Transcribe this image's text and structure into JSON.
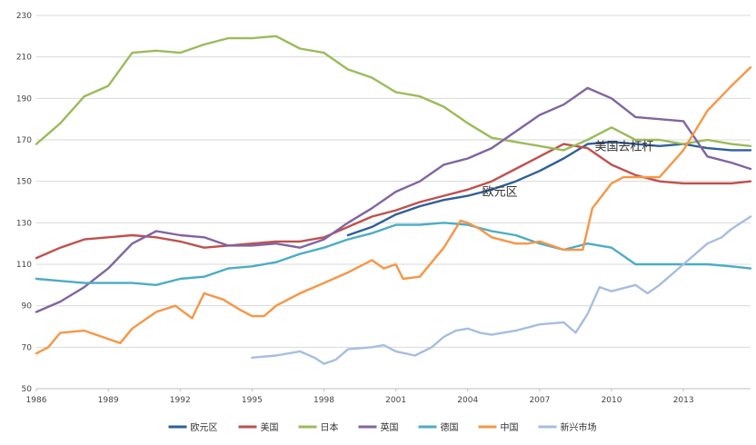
{
  "chart_data": {
    "type": "line",
    "title": "",
    "xlabel": "",
    "ylabel": "",
    "xlim": [
      1986,
      2015.8
    ],
    "ylim": [
      50,
      230
    ],
    "yticks": [
      50,
      70,
      90,
      110,
      130,
      150,
      170,
      190,
      210,
      230
    ],
    "xticks": [
      1986,
      1989,
      1992,
      1995,
      1998,
      2001,
      2004,
      2007,
      2010,
      2013
    ],
    "grid": true,
    "legend_position": "bottom",
    "annotations": [
      {
        "text": "美国去杠杆",
        "x": 2009.3,
        "y": 165
      },
      {
        "text": "欧元区",
        "x": 2004.6,
        "y": 143
      }
    ],
    "series": [
      {
        "name": "欧元区",
        "color": "#2e5f9c",
        "points": [
          [
            1999,
            124
          ],
          [
            2000,
            128
          ],
          [
            2001,
            134
          ],
          [
            2002,
            138
          ],
          [
            2003,
            141
          ],
          [
            2004,
            143
          ],
          [
            2005,
            146
          ],
          [
            2006,
            150
          ],
          [
            2007,
            155
          ],
          [
            2008,
            161
          ],
          [
            2009,
            168
          ],
          [
            2010,
            169
          ],
          [
            2011,
            168
          ],
          [
            2012,
            167
          ],
          [
            2013,
            168
          ],
          [
            2014,
            166
          ],
          [
            2015,
            165
          ],
          [
            2015.8,
            165
          ]
        ]
      },
      {
        "name": "美国",
        "color": "#c0504d",
        "points": [
          [
            1986,
            113
          ],
          [
            1987,
            118
          ],
          [
            1988,
            122
          ],
          [
            1989,
            123
          ],
          [
            1990,
            124
          ],
          [
            1991,
            123
          ],
          [
            1992,
            121
          ],
          [
            1993,
            118
          ],
          [
            1994,
            119
          ],
          [
            1995,
            120
          ],
          [
            1996,
            121
          ],
          [
            1997,
            121
          ],
          [
            1998,
            123
          ],
          [
            1999,
            128
          ],
          [
            2000,
            133
          ],
          [
            2001,
            136
          ],
          [
            2002,
            140
          ],
          [
            2003,
            143
          ],
          [
            2004,
            146
          ],
          [
            2005,
            150
          ],
          [
            2006,
            156
          ],
          [
            2007,
            162
          ],
          [
            2008,
            168
          ],
          [
            2009,
            166
          ],
          [
            2010,
            158
          ],
          [
            2011,
            153
          ],
          [
            2012,
            150
          ],
          [
            2013,
            149
          ],
          [
            2014,
            149
          ],
          [
            2015,
            149
          ],
          [
            2015.8,
            150
          ]
        ]
      },
      {
        "name": "日本",
        "color": "#9bbb59",
        "points": [
          [
            1986,
            168
          ],
          [
            1987,
            178
          ],
          [
            1988,
            191
          ],
          [
            1989,
            196
          ],
          [
            1990,
            212
          ],
          [
            1991,
            213
          ],
          [
            1992,
            212
          ],
          [
            1993,
            216
          ],
          [
            1994,
            219
          ],
          [
            1995,
            219
          ],
          [
            1996,
            220
          ],
          [
            1997,
            214
          ],
          [
            1998,
            212
          ],
          [
            1999,
            204
          ],
          [
            2000,
            200
          ],
          [
            2001,
            193
          ],
          [
            2002,
            191
          ],
          [
            2003,
            186
          ],
          [
            2004,
            178
          ],
          [
            2005,
            171
          ],
          [
            2006,
            169
          ],
          [
            2007,
            167
          ],
          [
            2008,
            165
          ],
          [
            2009,
            170
          ],
          [
            2010,
            176
          ],
          [
            2011,
            170
          ],
          [
            2012,
            170
          ],
          [
            2013,
            168
          ],
          [
            2014,
            170
          ],
          [
            2015,
            168
          ],
          [
            2015.8,
            167
          ]
        ]
      },
      {
        "name": "英国",
        "color": "#8064a2",
        "points": [
          [
            1986,
            87
          ],
          [
            1987,
            92
          ],
          [
            1988,
            99
          ],
          [
            1989,
            108
          ],
          [
            1990,
            120
          ],
          [
            1991,
            126
          ],
          [
            1992,
            124
          ],
          [
            1993,
            123
          ],
          [
            1994,
            119
          ],
          [
            1995,
            119
          ],
          [
            1996,
            120
          ],
          [
            1997,
            118
          ],
          [
            1998,
            122
          ],
          [
            1999,
            130
          ],
          [
            2000,
            137
          ],
          [
            2001,
            145
          ],
          [
            2002,
            150
          ],
          [
            2003,
            158
          ],
          [
            2004,
            161
          ],
          [
            2005,
            166
          ],
          [
            2006,
            174
          ],
          [
            2007,
            182
          ],
          [
            2008,
            187
          ],
          [
            2009,
            195
          ],
          [
            2010,
            190
          ],
          [
            2011,
            181
          ],
          [
            2012,
            180
          ],
          [
            2013,
            179
          ],
          [
            2014,
            162
          ],
          [
            2015,
            159
          ],
          [
            2015.8,
            156
          ]
        ]
      },
      {
        "name": "德国",
        "color": "#4bacc6",
        "points": [
          [
            1986,
            103
          ],
          [
            1987,
            102
          ],
          [
            1988,
            101
          ],
          [
            1989,
            101
          ],
          [
            1990,
            101
          ],
          [
            1991,
            100
          ],
          [
            1992,
            103
          ],
          [
            1993,
            104
          ],
          [
            1994,
            108
          ],
          [
            1995,
            109
          ],
          [
            1996,
            111
          ],
          [
            1997,
            115
          ],
          [
            1998,
            118
          ],
          [
            1999,
            122
          ],
          [
            2000,
            125
          ],
          [
            2001,
            129
          ],
          [
            2002,
            129
          ],
          [
            2003,
            130
          ],
          [
            2004,
            129
          ],
          [
            2005,
            126
          ],
          [
            2006,
            124
          ],
          [
            2007,
            120
          ],
          [
            2008,
            117
          ],
          [
            2009,
            120
          ],
          [
            2010,
            118
          ],
          [
            2011,
            110
          ],
          [
            2012,
            110
          ],
          [
            2013,
            110
          ],
          [
            2014,
            110
          ],
          [
            2015,
            109
          ],
          [
            2015.8,
            108
          ]
        ]
      },
      {
        "name": "中国",
        "color": "#f79646",
        "points": [
          [
            1986,
            67
          ],
          [
            1986.5,
            70
          ],
          [
            1987,
            77
          ],
          [
            1988,
            78
          ],
          [
            1989,
            74
          ],
          [
            1989.5,
            72
          ],
          [
            1990,
            79
          ],
          [
            1991,
            87
          ],
          [
            1991.8,
            90
          ],
          [
            1992.5,
            84
          ],
          [
            1993,
            96
          ],
          [
            1993.8,
            93
          ],
          [
            1994.5,
            88
          ],
          [
            1995,
            85
          ],
          [
            1995.5,
            85
          ],
          [
            1996,
            90
          ],
          [
            1997,
            96
          ],
          [
            1998,
            101
          ],
          [
            1999,
            106
          ],
          [
            2000,
            112
          ],
          [
            2000.5,
            108
          ],
          [
            2001,
            110
          ],
          [
            2001.3,
            103
          ],
          [
            2002,
            104
          ],
          [
            2003,
            118
          ],
          [
            2003.7,
            131
          ],
          [
            2004,
            130
          ],
          [
            2004.5,
            127
          ],
          [
            2005,
            123
          ],
          [
            2006,
            120
          ],
          [
            2006.5,
            120
          ],
          [
            2007,
            121
          ],
          [
            2007.5,
            119
          ],
          [
            2008,
            117
          ],
          [
            2008.8,
            117
          ],
          [
            2009.2,
            137
          ],
          [
            2010,
            149
          ],
          [
            2010.5,
            152
          ],
          [
            2011,
            152
          ],
          [
            2012,
            152
          ],
          [
            2013,
            165
          ],
          [
            2014,
            184
          ],
          [
            2014.5,
            190
          ],
          [
            2015,
            196
          ],
          [
            2015.8,
            205
          ]
        ]
      },
      {
        "name": "新兴市场",
        "color": "#a7bde0",
        "points": [
          [
            1995,
            65
          ],
          [
            1996,
            66
          ],
          [
            1997,
            68
          ],
          [
            1997.6,
            65
          ],
          [
            1998,
            62
          ],
          [
            1998.5,
            64
          ],
          [
            1999,
            69
          ],
          [
            2000,
            70
          ],
          [
            2000.5,
            71
          ],
          [
            2001,
            68
          ],
          [
            2001.8,
            66
          ],
          [
            2002.5,
            70
          ],
          [
            2003,
            75
          ],
          [
            2003.5,
            78
          ],
          [
            2004,
            79
          ],
          [
            2004.5,
            77
          ],
          [
            2005,
            76
          ],
          [
            2006,
            78
          ],
          [
            2007,
            81
          ],
          [
            2008,
            82
          ],
          [
            2008.5,
            77
          ],
          [
            2009,
            86
          ],
          [
            2009.5,
            99
          ],
          [
            2010,
            97
          ],
          [
            2011,
            100
          ],
          [
            2011.5,
            96
          ],
          [
            2012,
            100
          ],
          [
            2013,
            110
          ],
          [
            2014,
            120
          ],
          [
            2014.6,
            123
          ],
          [
            2015,
            127
          ],
          [
            2015.8,
            133
          ]
        ]
      }
    ]
  }
}
